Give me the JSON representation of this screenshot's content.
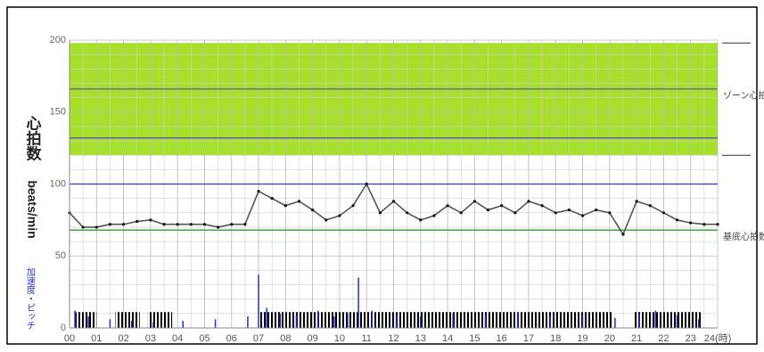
{
  "chart_data": {
    "type": "line",
    "y_label": "心拍数",
    "y_unit": "beats/min",
    "y2_label": "加速度・ピッチ",
    "zone_label": "ゾーン心拍数",
    "base_label": "基底心拍数",
    "xlim": [
      0,
      24
    ],
    "ylim": [
      0,
      200
    ],
    "xticks": [
      {
        "value": 0,
        "label": "00"
      },
      {
        "value": 1,
        "label": "01"
      },
      {
        "value": 2,
        "label": "02"
      },
      {
        "value": 3,
        "label": "03"
      },
      {
        "value": 4,
        "label": "04"
      },
      {
        "value": 5,
        "label": "05"
      },
      {
        "value": 6,
        "label": "06"
      },
      {
        "value": 7,
        "label": "07"
      },
      {
        "value": 8,
        "label": "08"
      },
      {
        "value": 9,
        "label": "09"
      },
      10,
      11,
      12,
      13,
      14,
      15,
      16,
      17,
      18,
      19,
      20,
      21,
      22,
      23,
      {
        "value": 24,
        "label": "24(時)"
      }
    ],
    "yticks": [
      0,
      50,
      100,
      150,
      200
    ],
    "grid": true,
    "zone_band": [
      120,
      198
    ],
    "zone_upper": 166,
    "zone_lower": 132,
    "high_line": 100,
    "base_line": 68,
    "x": [
      0,
      0.5,
      1,
      1.5,
      2,
      2.5,
      3,
      3.5,
      4,
      4.5,
      5,
      5.5,
      6,
      6.5,
      7,
      7.5,
      8,
      8.5,
      9,
      9.5,
      10,
      10.5,
      11,
      11.5,
      12,
      12.5,
      13,
      13.5,
      14,
      14.5,
      15,
      15.5,
      16,
      16.5,
      17,
      17.5,
      18,
      18.5,
      19,
      19.5,
      20,
      20.5,
      21,
      21.5,
      22,
      22.5,
      23,
      23.5,
      24
    ],
    "series": [
      {
        "name": "心拍数",
        "color": "#555555",
        "values": [
          80,
          70,
          70,
          72,
          72,
          74,
          75,
          72,
          72,
          72,
          72,
          70,
          72,
          72,
          95,
          90,
          85,
          88,
          82,
          75,
          78,
          85,
          100,
          80,
          88,
          80,
          75,
          78,
          85,
          80,
          88,
          82,
          85,
          80,
          88,
          85,
          80,
          82,
          78,
          82,
          80,
          65,
          88,
          85,
          80,
          75,
          73,
          72,
          72
        ]
      }
    ],
    "accel": {
      "color": "#1f2fd0",
      "x": [
        0.2,
        0.7,
        1.5,
        2.3,
        3.1,
        4.2,
        5.4,
        6.6,
        7.0,
        7.3,
        7.8,
        8.4,
        9.2,
        9.8,
        10.3,
        10.7,
        11.2,
        12.1,
        13.0,
        14.2,
        15.4,
        16.6,
        17.8,
        19.0,
        20.2,
        21.1,
        21.7,
        22.5,
        23.3
      ],
      "values": [
        12,
        8,
        6,
        5,
        4,
        5,
        6,
        8,
        37,
        14,
        10,
        9,
        12,
        8,
        10,
        35,
        12,
        9,
        8,
        10,
        9,
        11,
        8,
        9,
        7,
        10,
        12,
        9,
        6
      ]
    },
    "pitch": {
      "color": "#000000",
      "height": 11,
      "spans": [
        {
          "start": 0.2,
          "end": 1.0
        },
        {
          "start": 1.7,
          "end": 2.6
        },
        {
          "start": 2.9,
          "end": 3.8
        },
        {
          "start": 7.0,
          "end": 20.1
        },
        {
          "start": 20.9,
          "end": 23.4
        }
      ]
    }
  }
}
